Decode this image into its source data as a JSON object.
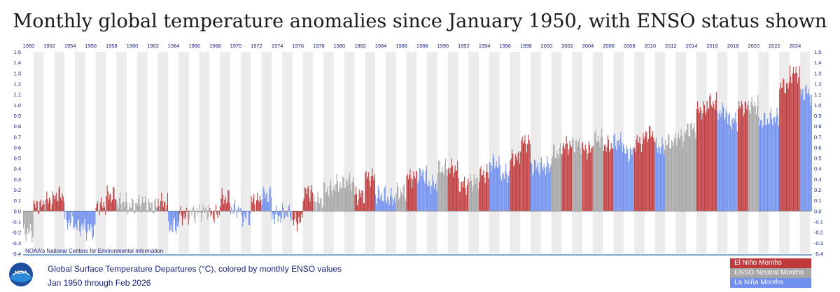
{
  "title": "Monthly global temperature anomalies since January 1950, with ENSO status shown",
  "source_note": "NOAA's National Centers for Environmental Information",
  "subtitle": "Global Surface Temperature Departures (°C), colored by monthly ENSO values",
  "date_range": "Jan 1950 through Feb 2026",
  "logo_text": "NOAA",
  "colors": {
    "el_nino": "#c0393b",
    "neutral": "#a6a6a6",
    "la_nina": "#6f8ff0",
    "axis_text": "#1a237e",
    "band": "#ececec"
  },
  "legend": [
    {
      "label": "El Niño Months",
      "color": "#c0393b"
    },
    {
      "label": "ENSO Neutral Months",
      "color": "#a6a6a6"
    },
    {
      "label": "La Niña Months",
      "color": "#6f8ff0"
    }
  ],
  "chart_data": {
    "type": "bar",
    "x_tick_labels": [
      "1950",
      "1952",
      "1954",
      "1956",
      "1958",
      "1960",
      "1962",
      "1964",
      "1966",
      "1968",
      "1970",
      "1972",
      "1974",
      "1976",
      "1978",
      "1980",
      "1982",
      "1984",
      "1986",
      "1988",
      "1990",
      "1992",
      "1994",
      "1996",
      "1998",
      "2000",
      "2002",
      "2004",
      "2006",
      "2008",
      "2010",
      "2012",
      "2014",
      "2016",
      "2018",
      "2020",
      "2022",
      "2024"
    ],
    "y_tick_labels": [
      "1.5",
      "1.4",
      "1.3",
      "1.2",
      "1.1",
      "1.0",
      "0.9",
      "0.8",
      "0.7",
      "0.6",
      "0.5",
      "0.4",
      "0.3",
      "0.2",
      "0.1",
      "0.0",
      "-0.1",
      "-0.2",
      "-0.3",
      "-0.4"
    ],
    "ylim": [
      -0.4,
      1.5
    ],
    "x_start_year": 1950,
    "grid": "alternating year bands",
    "legend_position": "bottom-right",
    "series": [
      {
        "name": "El Niño Months",
        "color": "#c0393b"
      },
      {
        "name": "ENSO Neutral Months",
        "color": "#a6a6a6"
      },
      {
        "name": "La Niña Months",
        "color": "#6f8ff0"
      }
    ],
    "annual": [
      {
        "year": 1950,
        "value": -0.2,
        "enso": "N"
      },
      {
        "year": 1951,
        "value": 0.05,
        "enso": "E"
      },
      {
        "year": 1952,
        "value": 0.1,
        "enso": "E"
      },
      {
        "year": 1953,
        "value": 0.15,
        "enso": "E"
      },
      {
        "year": 1954,
        "value": -0.1,
        "enso": "L"
      },
      {
        "year": 1955,
        "value": -0.15,
        "enso": "L"
      },
      {
        "year": 1956,
        "value": -0.18,
        "enso": "L"
      },
      {
        "year": 1957,
        "value": 0.05,
        "enso": "E"
      },
      {
        "year": 1958,
        "value": 0.15,
        "enso": "E"
      },
      {
        "year": 1959,
        "value": 0.08,
        "enso": "N"
      },
      {
        "year": 1960,
        "value": 0.05,
        "enso": "N"
      },
      {
        "year": 1961,
        "value": 0.08,
        "enso": "N"
      },
      {
        "year": 1962,
        "value": 0.05,
        "enso": "N"
      },
      {
        "year": 1963,
        "value": 0.08,
        "enso": "E"
      },
      {
        "year": 1964,
        "value": -0.15,
        "enso": "L"
      },
      {
        "year": 1965,
        "value": -0.05,
        "enso": "E"
      },
      {
        "year": 1966,
        "value": -0.02,
        "enso": "N"
      },
      {
        "year": 1967,
        "value": 0.0,
        "enso": "N"
      },
      {
        "year": 1968,
        "value": -0.03,
        "enso": "E"
      },
      {
        "year": 1969,
        "value": 0.12,
        "enso": "E"
      },
      {
        "year": 1970,
        "value": 0.02,
        "enso": "L"
      },
      {
        "year": 1971,
        "value": -0.06,
        "enso": "L"
      },
      {
        "year": 1972,
        "value": 0.1,
        "enso": "E"
      },
      {
        "year": 1973,
        "value": 0.15,
        "enso": "L"
      },
      {
        "year": 1974,
        "value": -0.05,
        "enso": "L"
      },
      {
        "year": 1975,
        "value": -0.02,
        "enso": "L"
      },
      {
        "year": 1976,
        "value": -0.1,
        "enso": "E"
      },
      {
        "year": 1977,
        "value": 0.18,
        "enso": "E"
      },
      {
        "year": 1978,
        "value": 0.1,
        "enso": "N"
      },
      {
        "year": 1979,
        "value": 0.2,
        "enso": "N"
      },
      {
        "year": 1980,
        "value": 0.25,
        "enso": "N"
      },
      {
        "year": 1981,
        "value": 0.28,
        "enso": "N"
      },
      {
        "year": 1982,
        "value": 0.15,
        "enso": "E"
      },
      {
        "year": 1983,
        "value": 0.32,
        "enso": "E"
      },
      {
        "year": 1984,
        "value": 0.15,
        "enso": "L"
      },
      {
        "year": 1985,
        "value": 0.12,
        "enso": "L"
      },
      {
        "year": 1986,
        "value": 0.18,
        "enso": "N"
      },
      {
        "year": 1987,
        "value": 0.32,
        "enso": "E"
      },
      {
        "year": 1988,
        "value": 0.35,
        "enso": "L"
      },
      {
        "year": 1989,
        "value": 0.25,
        "enso": "L"
      },
      {
        "year": 1990,
        "value": 0.4,
        "enso": "N"
      },
      {
        "year": 1991,
        "value": 0.4,
        "enso": "E"
      },
      {
        "year": 1992,
        "value": 0.25,
        "enso": "E"
      },
      {
        "year": 1993,
        "value": 0.28,
        "enso": "N"
      },
      {
        "year": 1994,
        "value": 0.35,
        "enso": "E"
      },
      {
        "year": 1995,
        "value": 0.45,
        "enso": "L"
      },
      {
        "year": 1996,
        "value": 0.35,
        "enso": "L"
      },
      {
        "year": 1997,
        "value": 0.5,
        "enso": "E"
      },
      {
        "year": 1998,
        "value": 0.65,
        "enso": "E"
      },
      {
        "year": 1999,
        "value": 0.42,
        "enso": "L"
      },
      {
        "year": 2000,
        "value": 0.42,
        "enso": "L"
      },
      {
        "year": 2001,
        "value": 0.55,
        "enso": "N"
      },
      {
        "year": 2002,
        "value": 0.62,
        "enso": "E"
      },
      {
        "year": 2003,
        "value": 0.63,
        "enso": "N"
      },
      {
        "year": 2004,
        "value": 0.58,
        "enso": "E"
      },
      {
        "year": 2005,
        "value": 0.68,
        "enso": "N"
      },
      {
        "year": 2006,
        "value": 0.62,
        "enso": "E"
      },
      {
        "year": 2007,
        "value": 0.65,
        "enso": "L"
      },
      {
        "year": 2008,
        "value": 0.55,
        "enso": "L"
      },
      {
        "year": 2009,
        "value": 0.65,
        "enso": "E"
      },
      {
        "year": 2010,
        "value": 0.73,
        "enso": "E"
      },
      {
        "year": 2011,
        "value": 0.6,
        "enso": "L"
      },
      {
        "year": 2012,
        "value": 0.65,
        "enso": "N"
      },
      {
        "year": 2013,
        "value": 0.7,
        "enso": "N"
      },
      {
        "year": 2014,
        "value": 0.78,
        "enso": "N"
      },
      {
        "year": 2015,
        "value": 0.95,
        "enso": "E"
      },
      {
        "year": 2016,
        "value": 1.02,
        "enso": "E"
      },
      {
        "year": 2017,
        "value": 0.93,
        "enso": "L"
      },
      {
        "year": 2018,
        "value": 0.85,
        "enso": "L"
      },
      {
        "year": 2019,
        "value": 0.98,
        "enso": "E"
      },
      {
        "year": 2020,
        "value": 1.0,
        "enso": "N"
      },
      {
        "year": 2021,
        "value": 0.85,
        "enso": "L"
      },
      {
        "year": 2022,
        "value": 0.88,
        "enso": "L"
      },
      {
        "year": 2023,
        "value": 1.18,
        "enso": "E"
      },
      {
        "year": 2024,
        "value": 1.3,
        "enso": "E"
      },
      {
        "year": 2025,
        "value": 1.12,
        "enso": "L"
      },
      {
        "year": 2026,
        "value": 1.08,
        "enso": "L"
      }
    ]
  }
}
